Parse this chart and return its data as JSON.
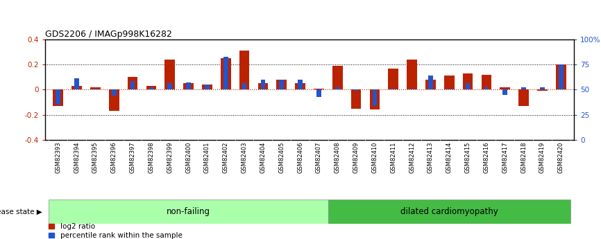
{
  "title": "GDS2206 / IMAGp998K16282",
  "samples": [
    "GSM82393",
    "GSM82394",
    "GSM82395",
    "GSM82396",
    "GSM82397",
    "GSM82398",
    "GSM82399",
    "GSM82400",
    "GSM82401",
    "GSM82402",
    "GSM82403",
    "GSM82404",
    "GSM82405",
    "GSM82406",
    "GSM82407",
    "GSM82408",
    "GSM82409",
    "GSM82410",
    "GSM82411",
    "GSM82412",
    "GSM82413",
    "GSM82414",
    "GSM82415",
    "GSM82416",
    "GSM82417",
    "GSM82418",
    "GSM82419",
    "GSM82420"
  ],
  "log2_ratio": [
    -0.13,
    0.03,
    0.02,
    -0.17,
    0.1,
    0.03,
    0.24,
    0.05,
    0.04,
    0.25,
    0.31,
    0.05,
    0.08,
    0.05,
    0.01,
    0.19,
    -0.15,
    -0.16,
    0.17,
    0.24,
    0.08,
    0.11,
    0.13,
    0.12,
    0.02,
    -0.13,
    -0.01,
    0.2
  ],
  "percentile_rank_dev": [
    -0.12,
    0.09,
    0.01,
    -0.05,
    0.07,
    0.02,
    0.05,
    0.06,
    0.04,
    0.26,
    0.05,
    0.08,
    0.08,
    0.08,
    -0.06,
    0.02,
    -0.01,
    -0.13,
    0.01,
    0.01,
    0.11,
    0.01,
    0.05,
    0.02,
    -0.04,
    0.02,
    0.02,
    0.2
  ],
  "non_failing_count": 15,
  "ylim": [
    -0.4,
    0.4
  ],
  "red_color": "#bb2200",
  "blue_color": "#2255cc",
  "label_bg_color": "#cccccc",
  "non_failing_color": "#aaffaa",
  "dilated_color": "#44bb44",
  "disease_state_label": "disease state",
  "non_failing_label": "non-failing",
  "dilated_label": "dilated cardiomyopathy",
  "legend_red_label": "log2 ratio",
  "legend_blue_label": "percentile rank within the sample"
}
